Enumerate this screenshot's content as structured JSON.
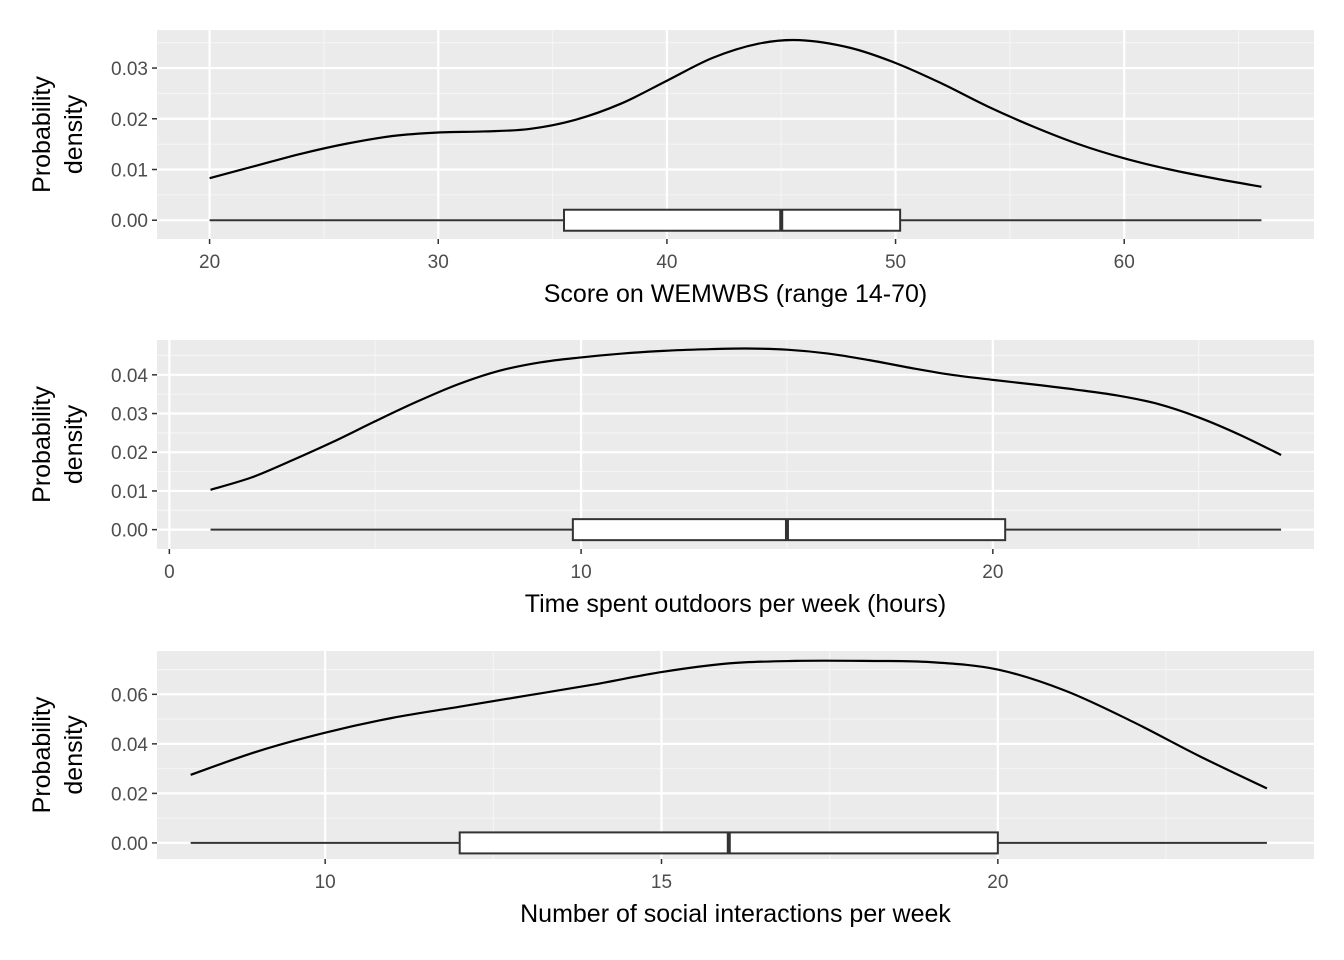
{
  "chart_data": [
    {
      "type": "density+boxplot",
      "xlabel": "Score on WEMWBS (range 14-70)",
      "ylabel": [
        "Probability",
        "density"
      ],
      "xlim": [
        17.7,
        68.3
      ],
      "ylim": [
        -0.0037,
        0.0375
      ],
      "x_ticks": [
        20,
        30,
        40,
        50,
        60
      ],
      "y_ticks": [
        0.0,
        0.01,
        0.02,
        0.03
      ],
      "y_tick_labels": [
        "0.00",
        "0.01",
        "0.02",
        "0.03"
      ],
      "grid": true,
      "density": {
        "x": [
          20,
          22,
          24,
          26,
          28,
          30,
          32,
          34,
          36,
          38,
          40,
          42,
          44,
          45.8,
          48,
          50,
          52,
          54,
          56,
          58,
          60,
          62,
          64,
          66
        ],
        "y": [
          0.0083,
          0.0107,
          0.0131,
          0.0151,
          0.0166,
          0.0173,
          0.0175,
          0.018,
          0.0198,
          0.023,
          0.0275,
          0.032,
          0.0348,
          0.0355,
          0.034,
          0.031,
          0.027,
          0.0225,
          0.0185,
          0.015,
          0.0122,
          0.01,
          0.0082,
          0.0066
        ]
      },
      "boxplot": {
        "min": 20,
        "q1": 35.5,
        "median": 45,
        "q3": 50.2,
        "max": 66
      }
    },
    {
      "type": "density+boxplot",
      "xlabel": "Time spent outdoors per week (hours)",
      "ylabel": [
        "Probability",
        "density"
      ],
      "xlim": [
        -0.3,
        27.8
      ],
      "ylim": [
        -0.005,
        0.049
      ],
      "x_ticks": [
        0,
        10,
        20
      ],
      "y_ticks": [
        0.0,
        0.01,
        0.02,
        0.03,
        0.04
      ],
      "y_tick_labels": [
        "0.00",
        "0.01",
        "0.02",
        "0.03",
        "0.04"
      ],
      "grid": true,
      "density": {
        "x": [
          1,
          2,
          3,
          4,
          5,
          6,
          7,
          8,
          9,
          10,
          11,
          12,
          13,
          14,
          15,
          16,
          17,
          18,
          19,
          20,
          21,
          22,
          23,
          24,
          25,
          26,
          27
        ],
        "y": [
          0.0103,
          0.0135,
          0.018,
          0.0228,
          0.028,
          0.033,
          0.0375,
          0.041,
          0.0432,
          0.0445,
          0.0455,
          0.0462,
          0.0466,
          0.0468,
          0.0465,
          0.0455,
          0.0438,
          0.0418,
          0.04,
          0.0387,
          0.0375,
          0.0362,
          0.0347,
          0.0325,
          0.029,
          0.0245,
          0.0193
        ]
      },
      "boxplot": {
        "min": 1,
        "q1": 9.8,
        "median": 15,
        "q3": 20.3,
        "max": 27
      }
    },
    {
      "type": "density+boxplot",
      "xlabel": "Number of social interactions per week",
      "ylabel": [
        "Probability",
        "density"
      ],
      "xlim": [
        7.5,
        24.7
      ],
      "ylim": [
        -0.0065,
        0.0775
      ],
      "x_ticks": [
        10,
        15,
        20
      ],
      "y_ticks": [
        0.0,
        0.02,
        0.04,
        0.06
      ],
      "y_tick_labels": [
        "0.00",
        "0.02",
        "0.04",
        "0.06"
      ],
      "grid": true,
      "density": {
        "x": [
          8,
          9,
          10,
          11,
          12,
          13,
          14,
          15,
          16,
          17,
          18,
          19,
          20,
          21,
          22,
          23,
          24
        ],
        "y": [
          0.0275,
          0.037,
          0.0445,
          0.0505,
          0.055,
          0.0595,
          0.064,
          0.069,
          0.0725,
          0.0735,
          0.0735,
          0.073,
          0.07,
          0.0615,
          0.049,
          0.035,
          0.022
        ]
      },
      "boxplot": {
        "min": 8,
        "q1": 12,
        "median": 16,
        "q3": 20,
        "max": 24
      }
    }
  ]
}
